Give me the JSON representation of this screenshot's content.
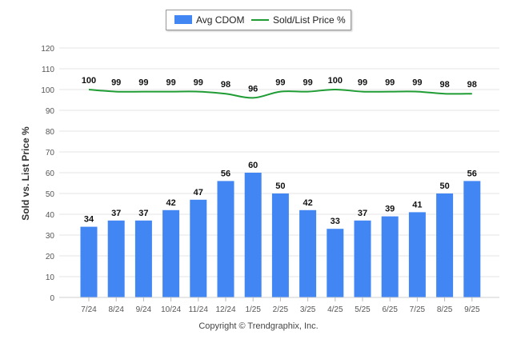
{
  "legend": {
    "bar_label": "Avg CDOM",
    "line_label": "Sold/List Price %"
  },
  "copyright": "Copyright © Trendgraphix, Inc.",
  "chart_data": {
    "type": "bar",
    "categories": [
      "7/24",
      "8/24",
      "9/24",
      "10/24",
      "11/24",
      "12/24",
      "1/25",
      "2/25",
      "3/25",
      "4/25",
      "5/25",
      "6/25",
      "7/25",
      "8/25",
      "9/25"
    ],
    "series": [
      {
        "name": "Avg CDOM",
        "type": "bar",
        "color": "#4286f4",
        "values": [
          34,
          37,
          37,
          42,
          47,
          56,
          60,
          50,
          42,
          33,
          37,
          39,
          41,
          50,
          56
        ]
      },
      {
        "name": "Sold/List Price %",
        "type": "line",
        "color": "#1f9c34",
        "values": [
          100,
          99,
          99,
          99,
          99,
          98,
          96,
          99,
          99,
          100,
          99,
          99,
          99,
          98,
          98
        ]
      }
    ],
    "ylabel": "Sold vs. List Price %",
    "ylim": [
      0,
      120
    ],
    "yticks": [
      0,
      10,
      20,
      30,
      40,
      50,
      60,
      70,
      80,
      90,
      100,
      110,
      120
    ],
    "grid": true,
    "legend_position": "top-center"
  }
}
